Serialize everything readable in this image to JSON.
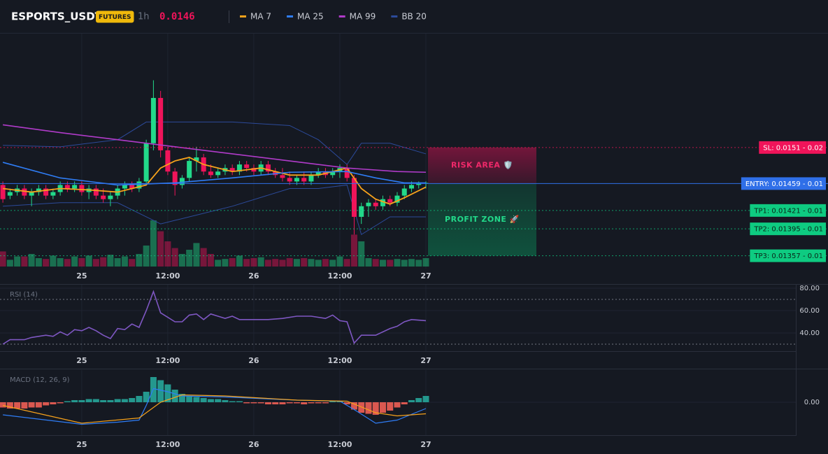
{
  "chart_data": [
    {
      "type": "candlestick",
      "title": "ESPORTS_USDT",
      "badge": "FUTURES",
      "interval": "1h",
      "last_price": 0.0146,
      "xlim": [
        -11.4,
        99.6
      ],
      "ylim": [
        0.01323,
        0.01669
      ],
      "xticks": [
        {
          "value": 0,
          "label": "25"
        },
        {
          "value": 12,
          "label": "12:00"
        },
        {
          "value": 24,
          "label": "26"
        },
        {
          "value": 36,
          "label": "12:00"
        },
        {
          "value": 48,
          "label": "27"
        }
      ],
      "up_color": "#22d98a",
      "down_color": "#f0145a",
      "x": [
        -11,
        -10,
        -9,
        -8,
        -7,
        -6,
        -5,
        -4,
        -3,
        -2,
        -1,
        0,
        1,
        2,
        3,
        4,
        5,
        6,
        7,
        8,
        9,
        10,
        11,
        12,
        13,
        14,
        15,
        16,
        17,
        18,
        19,
        20,
        21,
        22,
        23,
        24,
        25,
        26,
        27,
        28,
        29,
        30,
        31,
        32,
        33,
        34,
        35,
        36,
        37,
        38,
        39,
        40,
        41,
        42,
        43,
        44,
        45,
        46,
        47,
        48
      ],
      "open": [
        0.01457,
        0.01442,
        0.01447,
        0.01452,
        0.01442,
        0.01447,
        0.01452,
        0.01442,
        0.01447,
        0.01457,
        0.01452,
        0.01457,
        0.01447,
        0.01452,
        0.01442,
        0.01437,
        0.01442,
        0.01452,
        0.01457,
        0.01452,
        0.01462,
        0.01516,
        0.0158,
        0.01506,
        0.01476,
        0.01457,
        0.01467,
        0.01491,
        0.01496,
        0.01476,
        0.01471,
        0.01476,
        0.01481,
        0.01476,
        0.01486,
        0.01481,
        0.01476,
        0.01486,
        0.01476,
        0.01471,
        0.01467,
        0.01462,
        0.01467,
        0.01462,
        0.01471,
        0.01476,
        0.01471,
        0.01476,
        0.01481,
        0.01467,
        0.01412,
        0.01427,
        0.01432,
        0.01427,
        0.01437,
        0.01432,
        0.01442,
        0.01452,
        0.01457,
        0.01459
      ],
      "high": [
        0.01462,
        0.01452,
        0.01457,
        0.01457,
        0.01452,
        0.01457,
        0.01457,
        0.01452,
        0.01462,
        0.01462,
        0.01462,
        0.01462,
        0.01457,
        0.01457,
        0.01452,
        0.01447,
        0.01457,
        0.01462,
        0.01462,
        0.01467,
        0.01521,
        0.01605,
        0.0159,
        0.01511,
        0.01481,
        0.01471,
        0.01496,
        0.01511,
        0.01501,
        0.01486,
        0.01481,
        0.01486,
        0.01486,
        0.01491,
        0.01491,
        0.01486,
        0.01491,
        0.01491,
        0.01481,
        0.01481,
        0.01476,
        0.01471,
        0.01476,
        0.01476,
        0.01481,
        0.01481,
        0.01481,
        0.01486,
        0.01486,
        0.01471,
        0.01432,
        0.01437,
        0.01437,
        0.01442,
        0.01442,
        0.01447,
        0.01457,
        0.01462,
        0.01462,
        0.01462
      ],
      "low": [
        0.01432,
        0.01437,
        0.01442,
        0.01437,
        0.01427,
        0.01442,
        0.01437,
        0.01437,
        0.01442,
        0.01447,
        0.01447,
        0.01442,
        0.01437,
        0.01437,
        0.01432,
        0.01427,
        0.01437,
        0.01442,
        0.01447,
        0.01447,
        0.01457,
        0.01506,
        0.01496,
        0.01471,
        0.01442,
        0.01452,
        0.01462,
        0.01476,
        0.01471,
        0.01467,
        0.01467,
        0.01471,
        0.01471,
        0.01471,
        0.01476,
        0.01471,
        0.01471,
        0.01471,
        0.01467,
        0.01462,
        0.01457,
        0.01457,
        0.01457,
        0.01457,
        0.01467,
        0.01467,
        0.01467,
        0.01467,
        0.01462,
        0.01387,
        0.01402,
        0.01412,
        0.01422,
        0.01422,
        0.01427,
        0.01427,
        0.01437,
        0.01447,
        0.01452,
        0.01452
      ],
      "close": [
        0.01437,
        0.01447,
        0.01452,
        0.01442,
        0.01447,
        0.01452,
        0.01442,
        0.01447,
        0.01457,
        0.01452,
        0.01457,
        0.01447,
        0.01452,
        0.01442,
        0.01437,
        0.01442,
        0.01452,
        0.01457,
        0.01452,
        0.01462,
        0.01516,
        0.0158,
        0.01506,
        0.01476,
        0.01457,
        0.01467,
        0.01491,
        0.01496,
        0.01476,
        0.01471,
        0.01476,
        0.01481,
        0.01476,
        0.01486,
        0.01481,
        0.01476,
        0.01486,
        0.01476,
        0.01471,
        0.01467,
        0.01462,
        0.01467,
        0.01462,
        0.01471,
        0.01476,
        0.01471,
        0.01476,
        0.01481,
        0.01467,
        0.01412,
        0.01427,
        0.01432,
        0.01427,
        0.01437,
        0.01432,
        0.01442,
        0.01452,
        0.01457,
        0.01459,
        0.0146
      ],
      "volume": [
        18,
        8,
        12,
        12,
        15,
        10,
        9,
        13,
        10,
        9,
        12,
        10,
        13,
        9,
        11,
        14,
        10,
        12,
        9,
        15,
        25,
        55,
        42,
        30,
        22,
        15,
        20,
        28,
        22,
        15,
        8,
        9,
        10,
        13,
        9,
        10,
        11,
        8,
        9,
        8,
        10,
        9,
        10,
        9,
        8,
        9,
        8,
        12,
        9,
        38,
        30,
        10,
        9,
        8,
        8,
        9,
        8,
        9,
        8,
        10
      ],
      "volume_ylim": [
        0,
        100
      ],
      "lines": [
        {
          "name": "MA 7",
          "color": "#f7a21b",
          "x": [
            -11,
            -7,
            -3,
            1,
            5,
            9,
            11,
            13,
            15,
            17,
            21,
            25,
            29,
            33,
            37,
            39,
            41,
            43,
            45,
            48
          ],
          "values": [
            0.01452,
            0.01447,
            0.01452,
            0.0145,
            0.01447,
            0.01457,
            0.01481,
            0.01491,
            0.01496,
            0.01486,
            0.01476,
            0.01481,
            0.01471,
            0.01471,
            0.01481,
            0.01452,
            0.01437,
            0.0143,
            0.01439,
            0.01454
          ]
        },
        {
          "name": "MA 25",
          "color": "#2f7df6",
          "x": [
            -11,
            -3,
            5,
            13,
            21,
            29,
            37,
            41,
            45,
            48
          ],
          "values": [
            0.01489,
            0.01467,
            0.01457,
            0.0146,
            0.01467,
            0.01475,
            0.01476,
            0.01467,
            0.0146,
            0.0146
          ]
        },
        {
          "name": "MA 99",
          "color": "#b03bc9",
          "x": [
            -11,
            -3,
            5,
            13,
            21,
            29,
            37,
            44,
            48
          ],
          "values": [
            0.01542,
            0.01531,
            0.01521,
            0.01511,
            0.01501,
            0.01491,
            0.01481,
            0.01476,
            0.01475
          ]
        },
        {
          "name": "BB 20",
          "color": "#2c4a9a",
          "x": [
            -11,
            -3,
            5,
            9,
            11,
            13,
            15,
            21,
            29,
            33,
            37,
            39,
            43,
            48
          ],
          "upper": [
            0.01513,
            0.01511,
            0.01521,
            0.01546,
            0.01546,
            0.01546,
            0.01546,
            0.01546,
            0.01541,
            0.01521,
            0.01486,
            0.01516,
            0.01516,
            0.01501
          ],
          "lower": [
            0.01427,
            0.01432,
            0.01432,
            0.01412,
            0.01402,
            0.01407,
            0.01412,
            0.01427,
            0.01452,
            0.01452,
            0.01457,
            0.01387,
            0.01412,
            0.01412
          ]
        }
      ],
      "levels": [
        {
          "value": 0.0151,
          "label": "SL: 0.0151 - 0.02",
          "color": "#f0145a",
          "text_color": "#ffffff",
          "dashed": true
        },
        {
          "value": 0.01459,
          "label": "ENTRY: 0.01459 - 0.01",
          "color": "#2f6fe8",
          "text_color": "#ffffff",
          "dashed": false
        },
        {
          "value": 0.01421,
          "label": "TP1: 0.01421 - 0.01",
          "color": "#0ecb81",
          "text_color": "#0b2418",
          "dashed": true
        },
        {
          "value": 0.01395,
          "label": "TP2: 0.01395 - 0.01",
          "color": "#0ecb81",
          "text_color": "#0b2418",
          "dashed": true
        },
        {
          "value": 0.01357,
          "label": "TP3: 0.01357 - 0.01",
          "color": "#0ecb81",
          "text_color": "#0b2418",
          "dashed": true
        }
      ],
      "zones": [
        {
          "label": "RISK AREA 🛡️",
          "from": 0.0151,
          "to": 0.01459,
          "color": "#c0134f",
          "text_color": "#f0286a"
        },
        {
          "label": "PROFIT ZONE 🚀",
          "from": 0.01459,
          "to": 0.01357,
          "color": "#0b8a58",
          "text_color": "#22d98a"
        }
      ]
    },
    {
      "type": "line",
      "title": "RSI (14)",
      "color": "#7e57c2",
      "xlim": [
        -11.4,
        99.6
      ],
      "ylim": [
        25,
        82.5
      ],
      "xticks": [
        {
          "value": 0,
          "label": "25"
        },
        {
          "value": 12,
          "label": "12:00"
        },
        {
          "value": 24,
          "label": "26"
        },
        {
          "value": 36,
          "label": "12:00"
        },
        {
          "value": 48,
          "label": "27"
        }
      ],
      "yticks": [
        {
          "value": 80,
          "label": "80.00"
        },
        {
          "value": 60,
          "label": "60.00"
        },
        {
          "value": 40,
          "label": "40.00"
        }
      ],
      "levels": [
        70,
        30
      ],
      "x": [
        -11,
        -10,
        -8,
        -7,
        -5,
        -4,
        -3,
        -2,
        -1,
        0,
        1,
        2,
        3,
        4,
        5,
        6,
        7,
        8,
        9,
        10,
        11,
        12,
        13,
        14,
        15,
        16,
        17,
        18,
        19,
        20,
        21,
        22,
        23,
        24,
        26,
        28,
        30,
        32,
        34,
        35,
        36,
        37,
        38,
        39,
        41,
        43,
        44,
        45,
        46,
        48
      ],
      "values": [
        30,
        34,
        34,
        36,
        38,
        37,
        41,
        38,
        43,
        42,
        45,
        42,
        38,
        35,
        44,
        43,
        48,
        45,
        60,
        77,
        58,
        54,
        50,
        50,
        56,
        57,
        52,
        57,
        55,
        53,
        55,
        52,
        52,
        52,
        52,
        53,
        55,
        55,
        53,
        56,
        51,
        50,
        31,
        38,
        38,
        44,
        46,
        50,
        52,
        51
      ]
    },
    {
      "type": "macd",
      "title": "MACD (12, 26, 9)",
      "xlim": [
        -11.4,
        99.6
      ],
      "ylim": [
        -0.0003,
        0.0003
      ],
      "xticks": [
        {
          "value": 0,
          "label": "25"
        },
        {
          "value": 12,
          "label": "12:00"
        },
        {
          "value": 24,
          "label": "26"
        },
        {
          "value": 36,
          "label": "12:00"
        },
        {
          "value": 48,
          "label": "27"
        }
      ],
      "yticks": [
        {
          "value": 0,
          "label": "0.00"
        }
      ],
      "histogram": {
        "up_color": "#26a69a",
        "down_color": "#ef5f55",
        "x": [
          -11,
          -10,
          -9,
          -8,
          -7,
          -6,
          -5,
          -4,
          -3,
          -2,
          -1,
          0,
          1,
          2,
          3,
          4,
          5,
          6,
          7,
          8,
          9,
          10,
          11,
          12,
          13,
          14,
          15,
          16,
          17,
          18,
          19,
          20,
          21,
          22,
          23,
          24,
          25,
          26,
          27,
          28,
          29,
          30,
          31,
          32,
          33,
          34,
          35,
          36,
          37,
          38,
          39,
          40,
          41,
          42,
          43,
          44,
          45,
          46,
          47,
          48
        ],
        "values": [
          -5e-05,
          -6e-05,
          -6e-05,
          -6e-05,
          -5e-05,
          -5e-05,
          -3e-05,
          -2e-05,
          -1e-05,
          1e-05,
          2e-05,
          2e-05,
          3e-05,
          3e-05,
          2e-05,
          2e-05,
          3e-05,
          3e-05,
          4e-05,
          6e-05,
          0.0001,
          0.00024,
          0.00021,
          0.00017,
          0.00012,
          8e-05,
          6e-05,
          5e-05,
          4e-05,
          3e-05,
          3e-05,
          2e-05,
          1e-05,
          1e-05,
          -1e-05,
          -1e-05,
          -1e-05,
          -2e-05,
          -2e-05,
          -2e-05,
          -1e-05,
          -1e-05,
          -2e-05,
          -1e-05,
          -1e-05,
          -1e-05,
          1e-05,
          1e-05,
          -2e-05,
          -7e-05,
          -0.0001,
          -0.00011,
          -0.00012,
          -0.0001,
          -8e-05,
          -5e-05,
          -2e-05,
          2e-05,
          4e-05,
          6e-05
        ]
      },
      "macd_line": {
        "color": "#2f7df6",
        "x": [
          -11,
          0,
          5,
          8,
          9,
          10,
          12,
          14,
          20,
          30,
          36,
          38,
          41,
          44,
          48
        ],
        "values": [
          -0.00012,
          -0.00021,
          -0.00019,
          -0.00017,
          -3e-05,
          0.00013,
          0.0001,
          6e-05,
          5e-05,
          2e-05,
          1e-05,
          -7e-05,
          -0.0002,
          -0.00017,
          -6e-05
        ]
      },
      "signal_line": {
        "color": "#f7a21b",
        "x": [
          -11,
          0,
          8,
          11,
          14,
          20,
          30,
          37,
          41,
          44,
          48
        ],
        "values": [
          -3e-05,
          -0.0002,
          -0.00015,
          0,
          7e-05,
          6e-05,
          2e-05,
          1e-05,
          -0.0001,
          -0.00013,
          -0.00011
        ]
      }
    }
  ]
}
